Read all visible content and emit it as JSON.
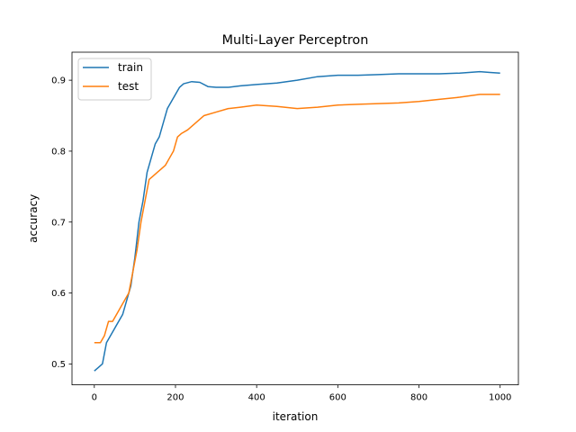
{
  "chart_data": {
    "type": "line",
    "title": "Multi-Layer Perceptron",
    "xlabel": "iteration",
    "ylabel": "accuracy",
    "xlim": [
      -55,
      1045
    ],
    "ylim": [
      0.4705,
      0.9395
    ],
    "xticks": [
      0,
      200,
      400,
      600,
      800,
      1000
    ],
    "yticks": [
      0.5,
      0.6,
      0.7,
      0.8,
      0.9
    ],
    "grid": false,
    "legend_position": "upper-left",
    "series": [
      {
        "name": "train",
        "color": "#1f77b4",
        "x": [
          0,
          10,
          20,
          30,
          40,
          50,
          60,
          70,
          80,
          90,
          100,
          110,
          120,
          130,
          140,
          150,
          160,
          170,
          180,
          190,
          200,
          210,
          220,
          240,
          260,
          280,
          300,
          330,
          360,
          400,
          450,
          500,
          550,
          600,
          650,
          700,
          750,
          800,
          850,
          900,
          950,
          975,
          1000
        ],
        "y": [
          0.49,
          0.495,
          0.5,
          0.53,
          0.54,
          0.55,
          0.56,
          0.57,
          0.59,
          0.61,
          0.65,
          0.7,
          0.73,
          0.77,
          0.79,
          0.81,
          0.82,
          0.84,
          0.86,
          0.87,
          0.88,
          0.89,
          0.895,
          0.898,
          0.897,
          0.891,
          0.89,
          0.89,
          0.892,
          0.894,
          0.896,
          0.9,
          0.905,
          0.907,
          0.907,
          0.908,
          0.909,
          0.909,
          0.909,
          0.91,
          0.912,
          0.911,
          0.91
        ]
      },
      {
        "name": "test",
        "color": "#ff7f0e",
        "x": [
          0,
          15,
          25,
          35,
          45,
          55,
          65,
          75,
          85,
          95,
          105,
          115,
          125,
          135,
          145,
          155,
          165,
          175,
          185,
          195,
          205,
          215,
          230,
          250,
          270,
          300,
          330,
          360,
          400,
          450,
          500,
          550,
          600,
          650,
          700,
          750,
          800,
          850,
          900,
          950,
          975,
          1000
        ],
        "y": [
          0.53,
          0.53,
          0.54,
          0.56,
          0.56,
          0.57,
          0.58,
          0.59,
          0.6,
          0.63,
          0.66,
          0.7,
          0.73,
          0.76,
          0.765,
          0.77,
          0.775,
          0.78,
          0.79,
          0.8,
          0.82,
          0.825,
          0.83,
          0.84,
          0.85,
          0.855,
          0.86,
          0.862,
          0.865,
          0.863,
          0.86,
          0.862,
          0.865,
          0.866,
          0.867,
          0.868,
          0.87,
          0.873,
          0.876,
          0.88,
          0.88,
          0.88
        ]
      }
    ]
  }
}
